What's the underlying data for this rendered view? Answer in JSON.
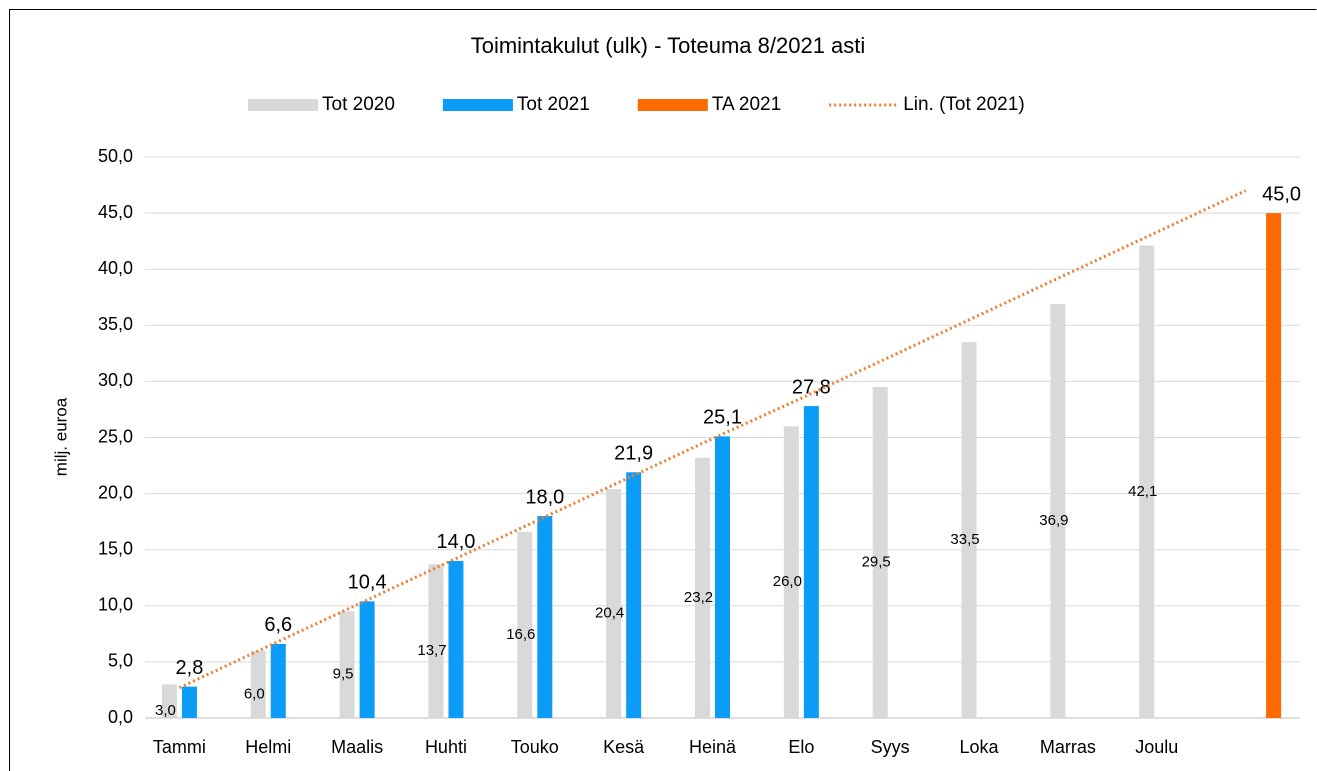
{
  "chart_data": {
    "type": "bar",
    "title": "Toimintakulut (ulk) - Toteuma 8/2021 asti",
    "y_label": "milj. euroa",
    "categories": [
      "Tammi",
      "Helmi",
      "Maalis",
      "Huhti",
      "Touko",
      "Kesä",
      "Heinä",
      "Elo",
      "Syys",
      "Loka",
      "Marras",
      "Joulu",
      null
    ],
    "series": [
      {
        "name": "Tot 2020",
        "color": "#d9d9d9",
        "values": [
          3.0,
          6.0,
          9.5,
          13.7,
          16.6,
          20.4,
          23.2,
          26.0,
          29.5,
          33.5,
          36.9,
          42.1,
          null
        ],
        "value_labels": [
          "3,0",
          "6,0",
          "9,5",
          "13,7",
          "16,6",
          "20,4",
          "23,2",
          "26,0",
          "29,5",
          "33,5",
          "36,9",
          "42,1",
          null
        ]
      },
      {
        "name": "Tot 2021",
        "color": "#0b9cf7",
        "values": [
          2.8,
          6.6,
          10.4,
          14.0,
          18.0,
          21.9,
          25.1,
          27.8,
          null,
          null,
          null,
          null,
          null
        ],
        "value_labels": [
          "2,8",
          "6,6",
          "10,4",
          "14,0",
          "18,0",
          "21,9",
          "25,1",
          "27,8",
          null,
          null,
          null,
          null,
          null
        ]
      },
      {
        "name": "TA 2021",
        "color": "#ff6a00",
        "values": [
          null,
          null,
          null,
          null,
          null,
          null,
          null,
          null,
          null,
          null,
          null,
          null,
          45.0
        ],
        "value_labels": [
          null,
          null,
          null,
          null,
          null,
          null,
          null,
          null,
          null,
          null,
          null,
          null,
          "45,0"
        ]
      },
      {
        "name": "Lin. (Tot 2021)",
        "color": "#ed7d31",
        "type": "line",
        "dashed": true,
        "values": [
          2.7,
          6.4,
          10.1,
          13.8,
          17.5,
          21.2,
          24.9,
          28.5,
          32.2,
          35.9,
          39.6,
          43.3,
          47.0
        ]
      }
    ],
    "ylim": [
      0,
      50
    ],
    "yticks": [
      {
        "value": 0,
        "label": "0,0"
      },
      {
        "value": 5,
        "label": "5,0"
      },
      {
        "value": 10,
        "label": "10,0"
      },
      {
        "value": 15,
        "label": "15,0"
      },
      {
        "value": 20,
        "label": "20,0"
      },
      {
        "value": 25,
        "label": "25,0"
      },
      {
        "value": 30,
        "label": "30,0"
      },
      {
        "value": 35,
        "label": "35,0"
      },
      {
        "value": 40,
        "label": "40,0"
      },
      {
        "value": 45,
        "label": "45,0"
      },
      {
        "value": 50,
        "label": "50,0"
      }
    ],
    "grid": true,
    "legend": "top"
  }
}
